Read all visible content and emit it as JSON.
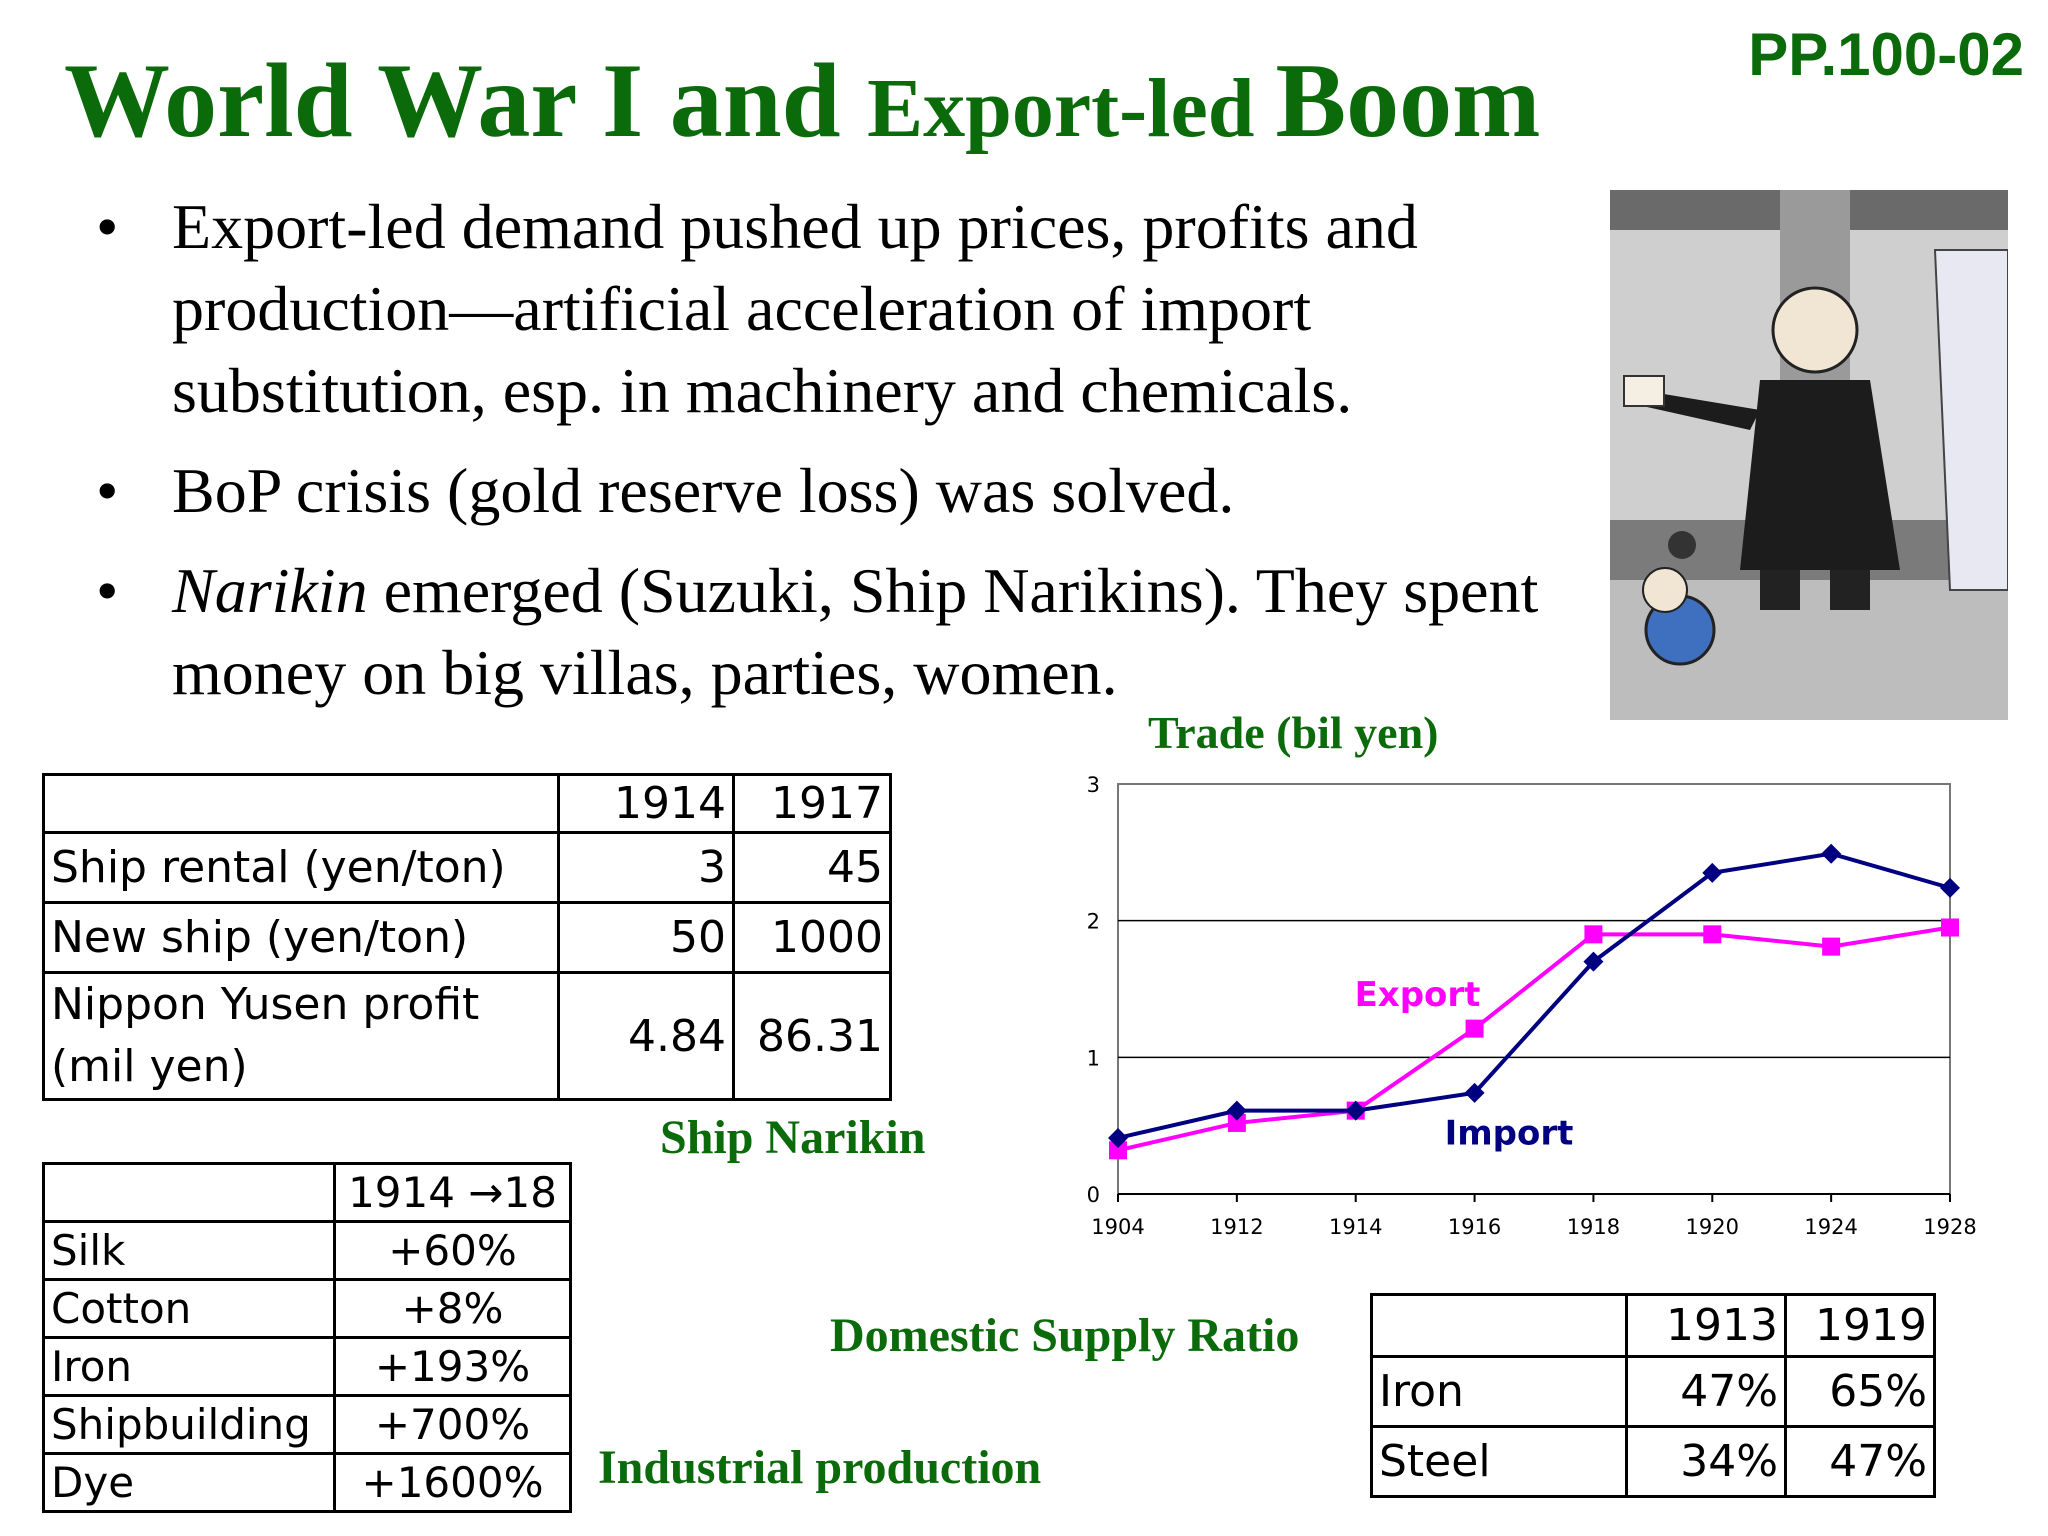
{
  "page_code": "PP.100-02",
  "title": {
    "part1": "World War I and ",
    "part2": "Export-led ",
    "part3": "Boom"
  },
  "bullets": [
    {
      "text": "Export-led demand pushed up prices, profits and production—artificial acceleration of import substitution, esp. in machinery and chemicals."
    },
    {
      "text": "BoP crisis (gold reserve loss) was solved."
    },
    {
      "em": "Narikin",
      "text": " emerged (Suzuki, Ship Narikins). They spent money on big villas, parties, women."
    }
  ],
  "bullet_glyph": "•",
  "ship_table": {
    "headers": [
      "",
      "1914",
      "1917"
    ],
    "rows": [
      [
        "Ship rental (yen/ton)",
        "3",
        "45"
      ],
      [
        "New ship (yen/ton)",
        "50",
        "1000"
      ],
      [
        "Nippon Yusen profit\n(mil yen)",
        "4.84",
        "86.31"
      ]
    ],
    "caption": "Ship Narikin"
  },
  "industry_table": {
    "headers": [
      "",
      "1914 →18"
    ],
    "rows": [
      [
        "Silk",
        "+60%"
      ],
      [
        "Cotton",
        "+8%"
      ],
      [
        "Iron",
        "+193%"
      ],
      [
        "Shipbuilding",
        "+700%"
      ],
      [
        "Dye",
        "+1600%"
      ]
    ],
    "caption": "Industrial production"
  },
  "supply_table": {
    "caption": "Domestic Supply Ratio",
    "headers": [
      "",
      "1913",
      "1919"
    ],
    "rows": [
      [
        "Iron",
        "47%",
        "65%"
      ],
      [
        "Steel",
        "34%",
        "47%"
      ]
    ]
  },
  "chart_data": {
    "type": "line",
    "title": "Trade (bil yen)",
    "categories": [
      "1904",
      "1912",
      "1914",
      "1916",
      "1918",
      "1920",
      "1924",
      "1928"
    ],
    "series": [
      {
        "name": "Export",
        "color": "#ff00ff",
        "marker": "square",
        "values": [
          0.32,
          0.52,
          0.61,
          1.21,
          1.9,
          1.9,
          1.81,
          1.95
        ]
      },
      {
        "name": "Import",
        "color": "#000080",
        "marker": "diamond",
        "values": [
          0.41,
          0.61,
          0.61,
          0.74,
          1.7,
          2.35,
          2.49,
          2.24
        ]
      }
    ],
    "ylim": [
      0,
      3
    ],
    "yticks": [
      0,
      1,
      2,
      3
    ],
    "grid": true,
    "legend": "inline labels"
  }
}
